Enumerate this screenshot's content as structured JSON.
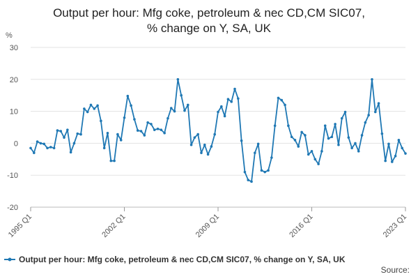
{
  "chart_data": {
    "type": "line",
    "title": "Output per hour: Mfg coke, petroleum & nec CD,CM SIC07,\n% change on Y, SA, UK",
    "ylabel": "%",
    "ylim": [
      -20,
      30
    ],
    "yticks": [
      -20,
      -10,
      0,
      10,
      20,
      30
    ],
    "xticks": [
      "1995 Q1",
      "2002 Q1",
      "2009 Q1",
      "2016 Q1",
      "2023 Q1"
    ],
    "grid": true,
    "legend_position": "bottom",
    "line_color": "#1f78b4",
    "series": [
      {
        "name": "Output per hour: Mfg coke, petroleum & nec CD,CM SIC07, % change on Y, SA, UK",
        "values": [
          -1.5,
          -3.0,
          0.5,
          0.0,
          -0.2,
          -1.5,
          -1.2,
          -1.5,
          4.0,
          3.8,
          1.8,
          4.2,
          -2.8,
          0.0,
          3.0,
          2.8,
          10.8,
          9.8,
          12.0,
          10.8,
          11.8,
          7.0,
          -1.5,
          3.2,
          -5.5,
          -5.5,
          2.8,
          1.0,
          8.0,
          14.8,
          11.8,
          7.5,
          4.0,
          3.8,
          2.5,
          6.5,
          6.0,
          4.2,
          4.5,
          4.2,
          3.2,
          7.8,
          11.0,
          10.0,
          20.0,
          15.0,
          10.2,
          12.0,
          -0.5,
          1.8,
          2.8,
          -3.0,
          -0.5,
          -3.5,
          -1.0,
          2.8,
          9.8,
          11.5,
          8.5,
          13.8,
          13.0,
          17.0,
          14.0,
          0.8,
          -9.0,
          -11.5,
          -12.0,
          -3.0,
          -0.2,
          -8.5,
          -9.0,
          -8.5,
          -4.5,
          5.5,
          14.2,
          13.5,
          12.0,
          5.5,
          2.0,
          1.0,
          -1.0,
          3.5,
          2.5,
          -3.5,
          -2.5,
          -5.0,
          -6.5,
          -2.5,
          5.5,
          1.5,
          2.0,
          6.0,
          -0.5,
          7.8,
          9.8,
          1.8,
          -1.5,
          0.0,
          -2.5,
          2.5,
          6.5,
          8.8,
          20.0,
          9.8,
          12.5,
          3.0,
          -5.5,
          -0.2,
          -5.8,
          -4.0,
          1.0,
          -1.5,
          -3.2
        ]
      }
    ]
  },
  "footer": {
    "source_label": "Source:"
  }
}
